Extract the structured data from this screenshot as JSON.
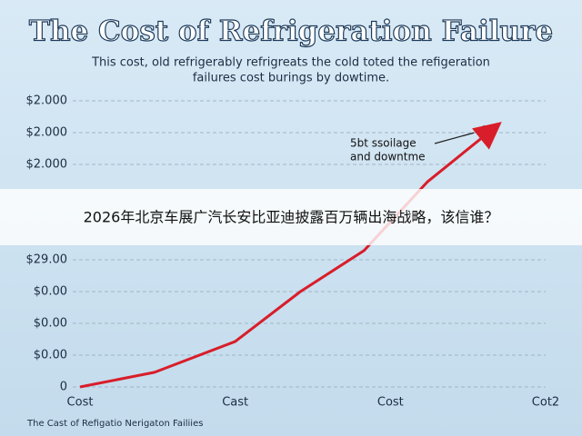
{
  "chart_data": {
    "type": "line",
    "title": "The Cost of Refrigeration Failure",
    "subtitle": [
      "This cost, old refrigerably refrigreats the cold toted the refigeration",
      "failures cost burings by dowtime."
    ],
    "annotation": [
      "5bt ssoilage",
      "and downtme"
    ],
    "footer": "The Cast of Refigatio Nerigaton Failiies",
    "banner": "2026年北京车展广汽长安比亚迪披露百万辆出海战略，该信谁？",
    "x": [
      0,
      0.48,
      1,
      1.42,
      1.83,
      2.24,
      2.69
    ],
    "values": [
      0,
      0.46,
      1.43,
      3.0,
      4.29,
      6.46,
      8.23
    ],
    "color": "#d81e2a",
    "xlim": [
      0,
      3
    ],
    "xticks": [
      {
        "value": 0,
        "label": "Cost"
      },
      {
        "value": 1,
        "label": "Cast"
      },
      {
        "value": 2,
        "label": "Cost"
      },
      {
        "value": 3,
        "label": "Cot2"
      }
    ],
    "ylim": [
      0,
      9
    ],
    "yticks": [
      0,
      {
        "value": 1,
        "label": "$0.00"
      },
      {
        "value": 2,
        "label": "$0.00"
      },
      {
        "value": 3,
        "label": "$0.00"
      },
      {
        "value": 4,
        "label": "$29.00"
      },
      {
        "value": 7,
        "label": "$2.000"
      },
      {
        "value": 8,
        "label": "$2.000"
      },
      {
        "value": 9,
        "label": "$2.000"
      }
    ],
    "grid": true
  }
}
